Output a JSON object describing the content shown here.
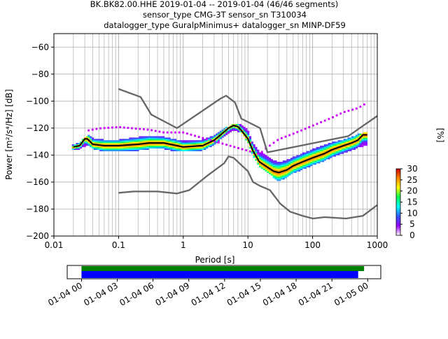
{
  "title": {
    "line1": "BK.BK82.00.HHE   2019-01-04 -- 2019-01-04  (46/46 segments)",
    "line2": "sensor_type CMG-3T sensor_sn T310034",
    "line3": "datalogger_type GuralpMinimus+ datalogger_sn MINP-DF59"
  },
  "colors": {
    "noise_model": "#666666",
    "mode_line": "#000000",
    "grid": "#b0b0b0",
    "coverage_data": "#008000",
    "coverage_gaps": "#0000ff"
  },
  "chart_data": [
    {
      "type": "heatmap",
      "xlabel": "Period [s]",
      "ylabel": "Power [m²/s⁴/Hz] [dB]",
      "xscale": "log",
      "xlim": [
        0.01,
        1000
      ],
      "ylim": [
        -200,
        -50
      ],
      "xticks": [
        0.01,
        0.1,
        1,
        10,
        100,
        1000
      ],
      "xtick_labels": [
        "0.01",
        "0.1",
        "1",
        "10",
        "100",
        "1000"
      ],
      "yticks": [
        -200,
        -180,
        -160,
        -140,
        -120,
        -100,
        -80,
        -60
      ],
      "ytick_labels": [
        "−200",
        "−180",
        "−160",
        "−140",
        "−120",
        "−100",
        "−80",
        "−60"
      ],
      "grid": true,
      "colorbar": {
        "label": "[%]",
        "range": [
          0,
          30
        ],
        "ticks": [
          0,
          5,
          10,
          15,
          20,
          25,
          30
        ],
        "tick_labels": [
          "0",
          "5",
          "10",
          "15",
          "20",
          "25",
          "30"
        ],
        "colormap": [
          "#ffffff",
          "#9900ff",
          "#3355ff",
          "#00ffff",
          "#00ff55",
          "#ffff00",
          "#ff8800",
          "#cc0000"
        ]
      },
      "density_band": {
        "x": [
          0.019,
          0.025,
          0.03,
          0.035,
          0.04,
          0.06,
          0.1,
          0.2,
          0.3,
          0.5,
          0.8,
          1,
          2,
          3,
          4,
          5,
          6,
          8,
          10,
          12,
          15,
          20,
          25,
          30,
          40,
          50,
          70,
          100,
          150,
          200,
          300,
          400,
          500,
          600,
          700
        ],
        "upper": [
          -133,
          -131,
          -127,
          -125,
          -128,
          -129,
          -129,
          -127,
          -126,
          -127,
          -129,
          -130,
          -129,
          -126,
          -122,
          -119,
          -117,
          -118,
          -122,
          -132,
          -138,
          -141,
          -144,
          -146,
          -144,
          -142,
          -139,
          -136,
          -133,
          -131,
          -129,
          -127,
          -125,
          -124,
          -123
        ],
        "lower": [
          -136,
          -135,
          -133,
          -133,
          -135,
          -137,
          -137,
          -136,
          -135,
          -135,
          -137,
          -137,
          -136,
          -132,
          -127,
          -123,
          -121,
          -123,
          -130,
          -140,
          -148,
          -152,
          -156,
          -159,
          -156,
          -153,
          -150,
          -147,
          -144,
          -141,
          -138,
          -136,
          -134,
          -133,
          -132
        ]
      },
      "outlier_band": {
        "x": [
          0.03,
          0.05,
          0.1,
          0.3,
          0.5,
          1,
          15,
          20,
          30,
          50,
          100,
          200,
          300,
          500,
          700
        ],
        "values": [
          -123,
          -121,
          -120,
          -122,
          -124,
          -124,
          -140,
          -135,
          -129,
          -125,
          -119,
          -113,
          -109,
          -106,
          -102
        ]
      },
      "series": [
        {
          "name": "",
          "role": "low-noise-model",
          "x": [
            0.1,
            0.17,
            0.4,
            0.8,
            1.24,
            2.4,
            4.3,
            5,
            6,
            10,
            12,
            15.6,
            21.9,
            31.6,
            45,
            70,
            101,
            154,
            328,
            600,
            1000
          ],
          "y": [
            -168,
            -167,
            -167,
            -168.5,
            -166,
            -155,
            -146,
            -141,
            -142,
            -152,
            -160,
            -163,
            -166,
            -176,
            -182,
            -185,
            -187,
            -186,
            -187,
            -185,
            -177
          ]
        },
        {
          "name": "",
          "role": "high-noise-model",
          "x": [
            0.1,
            0.22,
            0.32,
            0.8,
            3.8,
            4.6,
            6.3,
            7.9,
            15.4,
            20,
            354.8,
            1000
          ],
          "y": [
            -91,
            -97,
            -110,
            -120,
            -98,
            -96,
            -101,
            -113,
            -120,
            -138,
            -126,
            -111
          ]
        },
        {
          "name": "",
          "role": "mode",
          "x": [
            0.02,
            0.025,
            0.03,
            0.033,
            0.04,
            0.06,
            0.1,
            0.2,
            0.3,
            0.5,
            0.8,
            1,
            2,
            3,
            4,
            5,
            6,
            7,
            8,
            10,
            12,
            15,
            20,
            25,
            30,
            40,
            50,
            70,
            100,
            150,
            200,
            300,
            400,
            500,
            600,
            700
          ],
          "y": [
            -134,
            -133,
            -128,
            -128,
            -132,
            -133,
            -133,
            -132,
            -131,
            -131,
            -133,
            -134,
            -133,
            -129,
            -124,
            -120,
            -118,
            -119,
            -122,
            -128,
            -137,
            -145,
            -149,
            -152,
            -153,
            -151,
            -148,
            -145,
            -142,
            -139,
            -136,
            -133,
            -131,
            -129,
            -125,
            -125
          ]
        }
      ]
    },
    {
      "type": "timeline",
      "xticks": [
        "01-04 00",
        "01-04 03",
        "01-04 06",
        "01-04 09",
        "01-04 12",
        "01-04 15",
        "01-04 18",
        "01-04 21",
        "01-05 00"
      ],
      "data_span_hours": [
        0,
        23.7
      ],
      "psd_span_hours": [
        0,
        23.2
      ],
      "xlim_hours": [
        -1.2,
        25.1
      ]
    }
  ]
}
